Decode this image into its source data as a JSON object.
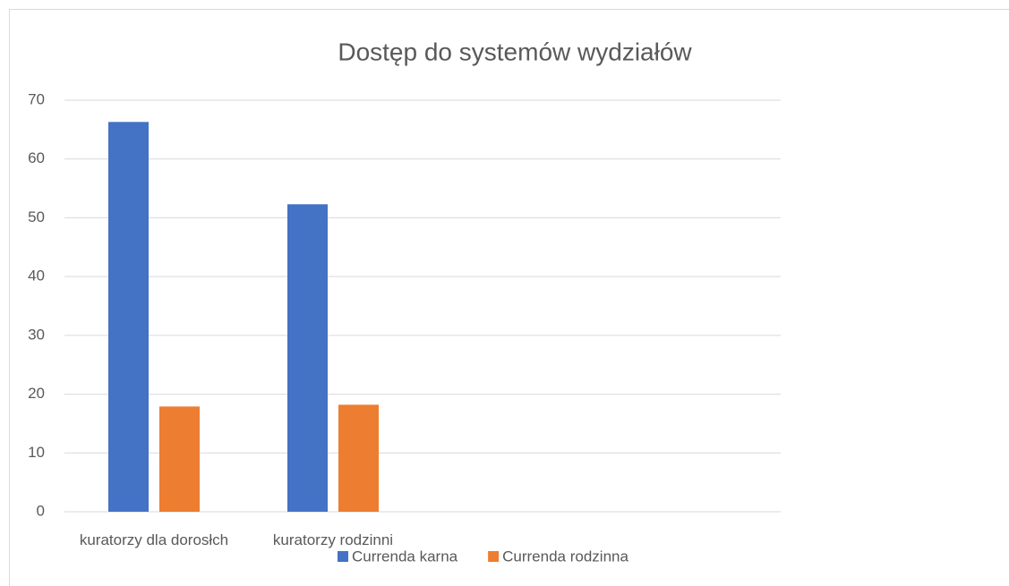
{
  "chart_data": {
    "type": "bar",
    "title": "Dostęp do systemów wydziałów",
    "categories": [
      "kuratorzy dla dorosłch",
      "kuratorzy rodzinni",
      null,
      null
    ],
    "series": [
      {
        "name": "Currenda karna",
        "color": "#4472c4",
        "values": [
          66.3,
          52.3,
          null,
          null
        ]
      },
      {
        "name": "Currenda rodzinna",
        "color": "#ed7d31",
        "values": [
          17.9,
          18.2,
          null,
          null
        ]
      }
    ],
    "ylim": [
      0,
      70
    ],
    "yticks": [
      0,
      10,
      20,
      30,
      40,
      50,
      60,
      70
    ],
    "grid": true,
    "legend": "bottom"
  }
}
